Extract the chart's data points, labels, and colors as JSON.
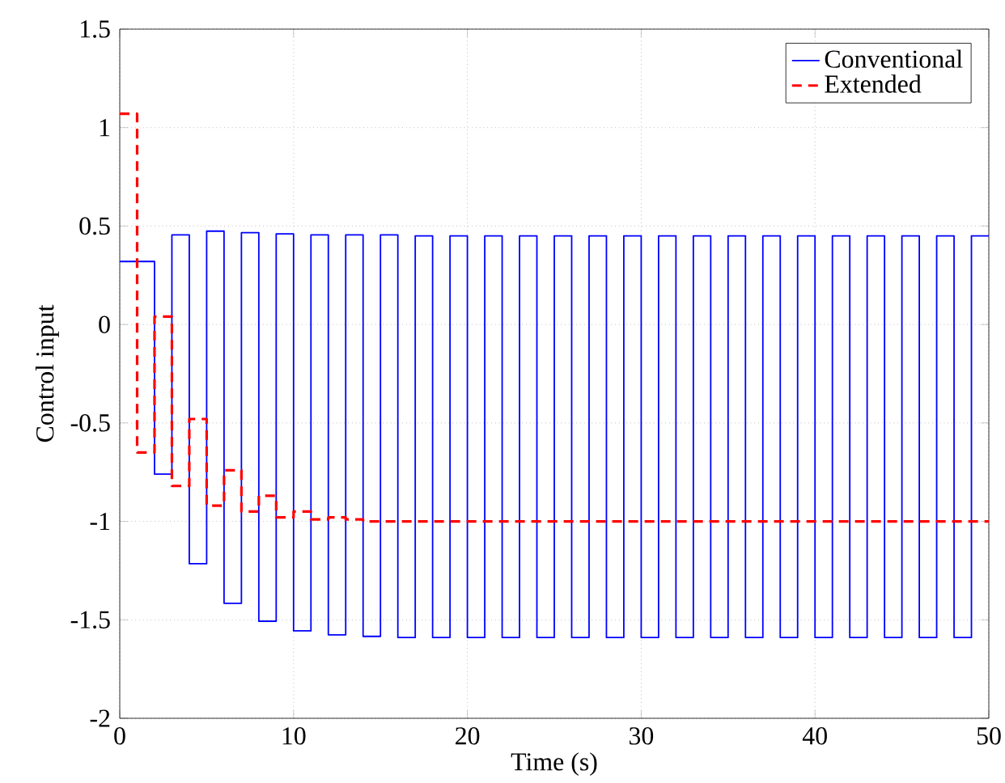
{
  "chart_data": {
    "type": "step",
    "xlabel": "Time (s)",
    "ylabel": "Control input",
    "x": [
      0,
      1,
      2,
      3,
      4,
      5,
      6,
      7,
      8,
      9,
      10,
      11,
      12,
      13,
      14,
      15,
      16,
      17,
      18,
      19,
      20,
      21,
      22,
      23,
      24,
      25,
      26,
      27,
      28,
      29,
      30,
      31,
      32,
      33,
      34,
      35,
      36,
      37,
      38,
      39,
      40,
      41,
      42,
      43,
      44,
      45,
      46,
      47,
      48,
      49,
      50
    ],
    "series": [
      {
        "name": "Conventional",
        "color": "#0000ff",
        "line_style": "solid",
        "values": [
          0.32,
          0.32,
          -0.76,
          0.455,
          -1.215,
          0.474,
          -1.416,
          0.466,
          -1.507,
          0.46,
          -1.556,
          0.455,
          -1.576,
          0.455,
          -1.584,
          0.455,
          -1.59,
          0.45,
          -1.59,
          0.45,
          -1.59,
          0.45,
          -1.59,
          0.45,
          -1.59,
          0.45,
          -1.59,
          0.45,
          -1.59,
          0.45,
          -1.59,
          0.45,
          -1.59,
          0.45,
          -1.59,
          0.45,
          -1.59,
          0.45,
          -1.59,
          0.45,
          -1.59,
          0.45,
          -1.59,
          0.45,
          -1.59,
          0.45,
          -1.59,
          0.45,
          -1.59,
          0.45,
          0.45
        ]
      },
      {
        "name": "Extended",
        "color": "#ff0000",
        "line_style": "dashed",
        "values": [
          1.07,
          -0.65,
          0.04,
          -0.82,
          -0.48,
          -0.92,
          -0.74,
          -0.95,
          -0.87,
          -0.98,
          -0.95,
          -0.99,
          -0.98,
          -0.99,
          -1,
          -1,
          -1,
          -1,
          -1,
          -1,
          -1,
          -1,
          -1,
          -1,
          -1,
          -1,
          -1,
          -1,
          -1,
          -1,
          -1,
          -1,
          -1,
          -1,
          -1,
          -1,
          -1,
          -1,
          -1,
          -1,
          -1,
          -1,
          -1,
          -1,
          -1,
          -1,
          -1,
          -1,
          -1,
          -1,
          -1
        ]
      }
    ],
    "xlim": [
      0,
      50
    ],
    "ylim": [
      -2,
      1.5
    ],
    "xticks": [
      0,
      10,
      20,
      30,
      40,
      50
    ],
    "yticks": [
      -2,
      -1.5,
      -1,
      -0.5,
      0,
      0.5,
      1,
      1.5
    ],
    "grid": true,
    "legend": "top right"
  }
}
